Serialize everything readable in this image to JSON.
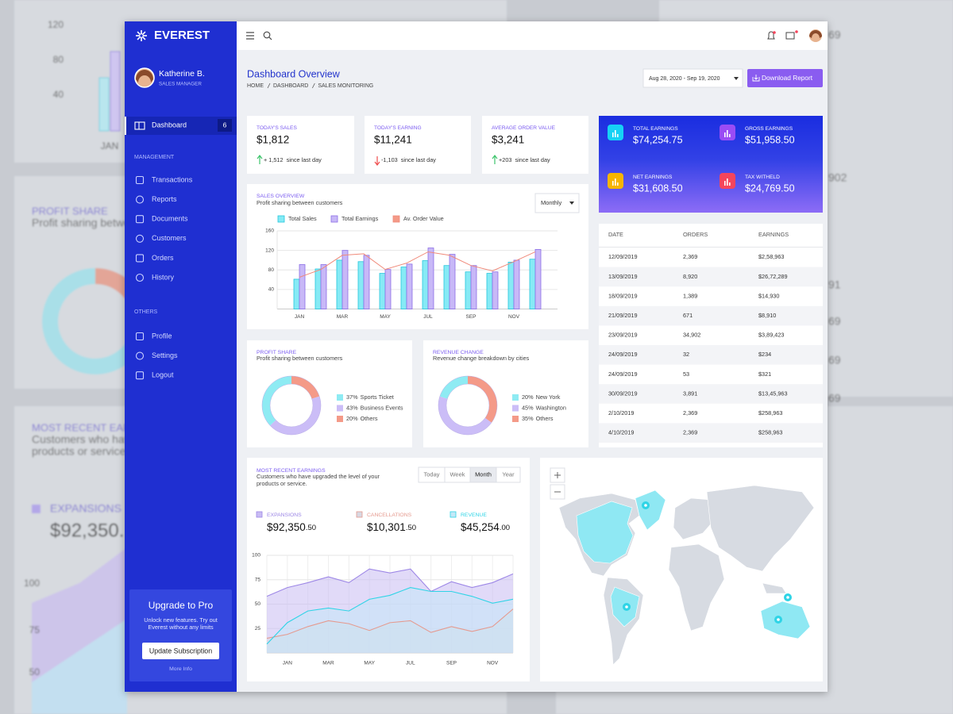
{
  "backdrop": {
    "left_texts": [
      "120",
      "80",
      "40",
      "JAN",
      "PROFIT SHARE",
      "Profit sharing betwe",
      "MOST RECENT EAR",
      "Customers who hav",
      "products or service.",
      "EXPANSIONS",
      "$92,350.",
      "100",
      "75",
      "50"
    ],
    "right_texts": [
      "69",
      "902",
      "91",
      "69",
      "69",
      "69"
    ]
  },
  "sidebar": {
    "brand": "EVEREST",
    "user": {
      "name": "Katherine B.",
      "role": "SALES MANAGER"
    },
    "active": {
      "label": "Dashboard",
      "badge": 6
    },
    "sections": [
      {
        "title": "MANAGEMENT",
        "items": [
          "Transactions",
          "Reports",
          "Documents",
          "Customers",
          "Orders",
          "History"
        ]
      },
      {
        "title": "OTHERS",
        "items": [
          "Profile",
          "Settings",
          "Logout"
        ]
      }
    ],
    "upgrade": {
      "title": "Upgrade to Pro",
      "text": "Unlock new features. Try out Everest without any limits",
      "button": "Update Subscription",
      "link": "More Info"
    }
  },
  "header": {
    "title": "Dashboard Overview",
    "breadcrumb": [
      "HOME",
      "DASHBOARD",
      "SALES MONITORING"
    ],
    "date_range": "Aug 28, 2020 - Sep 19, 2020",
    "button": "Download Report"
  },
  "kpis": [
    {
      "label": "TODAY'S SALES",
      "value": "$1,812",
      "change": "+ 1,512",
      "note": "since last day",
      "trend": "up"
    },
    {
      "label": "TODAY'S EARNING",
      "value": "$11,241",
      "change": "-1,103",
      "note": "since last day",
      "trend": "down"
    },
    {
      "label": "AVERAGE ORDER VALUE",
      "value": "$3,241",
      "change": "+203",
      "note": "since last day",
      "trend": "up"
    }
  ],
  "summary": [
    {
      "label": "TOTAL EARNINGS",
      "value": "$74,254.75",
      "color": "#16d2f5"
    },
    {
      "label": "GROSS EARNINGS",
      "value": "$51,958.50",
      "color": "#9a4cf5"
    },
    {
      "label": "NET EARNINGS",
      "value": "$31,608.50",
      "color": "#f7b500"
    },
    {
      "label": "TAX WITHELD",
      "value": "$24,769.50",
      "color": "#f5455c"
    }
  ],
  "table": {
    "columns": [
      "DATE",
      "ORDERS",
      "EARNINGS"
    ],
    "rows": [
      [
        "12/09/2019",
        "2,369",
        "$2,58,963"
      ],
      [
        "13/09/2019",
        "8,920",
        "$26,72,289"
      ],
      [
        "18/09/2019",
        "1,389",
        "$14,930"
      ],
      [
        "21/09/2019",
        "671",
        "$8,910"
      ],
      [
        "23/09/2019",
        "34,902",
        "$3,89,423"
      ],
      [
        "24/09/2019",
        "32",
        "$234"
      ],
      [
        "24/09/2019",
        "53",
        "$321"
      ],
      [
        "30/09/2019",
        "3,891",
        "$13,45,963"
      ],
      [
        "2/10/2019",
        "2,369",
        "$258,963"
      ],
      [
        "4/10/2019",
        "2,369",
        "$258,963"
      ]
    ]
  },
  "chart_data": [
    {
      "type": "bar",
      "title": "SALES OVERVIEW",
      "subtitle": "Profit sharing between customers",
      "control": "Monthly",
      "categories": [
        "JAN",
        null,
        "MAR",
        null,
        "MAY",
        null,
        "JUL",
        null,
        "SEP",
        null,
        "NOV",
        null
      ],
      "series": [
        {
          "name": "Total Sales",
          "kind": "bar",
          "color": "#25c6dc",
          "fill": "#86eaf5",
          "values": [
            61,
            82,
            100,
            97,
            73,
            86,
            99,
            89,
            76,
            73,
            96,
            102
          ]
        },
        {
          "name": "Total Earnings",
          "kind": "bar",
          "color": "#8c6fe6",
          "fill": "#c8b8f7",
          "values": [
            91,
            91,
            120,
            110,
            81,
            92,
            125,
            112,
            89,
            76,
            100,
            122
          ]
        },
        {
          "name": "Av. Order Value",
          "kind": "line",
          "color": "#f08a7a",
          "fill": "#f49a88",
          "values": [
            65,
            81,
            110,
            113,
            81,
            94,
            117,
            110,
            89,
            78,
            97,
            117
          ]
        }
      ],
      "ylim": [
        0,
        160
      ],
      "yticks": [
        40,
        80,
        120,
        160
      ],
      "grid": true
    },
    {
      "type": "pie",
      "title": "PROFIT SHARE",
      "subtitle": "Profit sharing between customers",
      "categories": [
        "Sports Ticket",
        "Business Events",
        "Others"
      ],
      "values": [
        37,
        43,
        20
      ],
      "value_labels": [
        "37%",
        "43%",
        "20%"
      ],
      "colors": [
        "#8eebf3",
        "#cbbdf7",
        "#f49a88"
      ]
    },
    {
      "type": "pie",
      "title": "REVENUE CHANGE",
      "subtitle": "Revenue change breakdown by cities",
      "categories": [
        "New York",
        "Washington",
        "Others"
      ],
      "values": [
        20,
        45,
        35
      ],
      "value_labels": [
        "20%",
        "45%",
        "35%"
      ],
      "colors": [
        "#8eebf3",
        "#cbbdf7",
        "#f49a88"
      ]
    },
    {
      "type": "area",
      "title": "MOST RECENT EARNINGS",
      "subtitle": "Customers who have upgraded the level of your products or service.",
      "tabs": [
        "Today",
        "Week",
        "Month",
        "Year"
      ],
      "active_tab": 2,
      "categories": [
        null,
        "JAN",
        null,
        "MAR",
        null,
        "MAY",
        null,
        "JUL",
        null,
        "SEP",
        null,
        "NOV",
        null
      ],
      "series": [
        {
          "name": "EXPANSIONS",
          "color": "#9d87e6",
          "fill": "#c9bcf3",
          "total": "$92,350",
          "cents": ".50",
          "values": [
            58,
            67,
            72,
            78,
            72,
            86,
            82,
            86,
            63,
            73,
            67,
            72,
            81
          ]
        },
        {
          "name": "CANCELLATIONS",
          "color": "#e59a8f",
          "fill": "#d8d8e2",
          "total": "$10,301",
          "cents": ".50",
          "values": [
            15,
            19,
            27,
            33,
            30,
            23,
            31,
            33,
            21,
            27,
            22,
            27,
            45
          ]
        },
        {
          "name": "REVENUE",
          "color": "#2fd4e6",
          "fill": "#c4e8f7",
          "total": "$45,254",
          "cents": ".00",
          "values": [
            9,
            31,
            43,
            46,
            43,
            55,
            59,
            67,
            63,
            63,
            58,
            51,
            55
          ]
        }
      ],
      "ylim": [
        0,
        100
      ],
      "yticks": [
        25,
        50,
        75,
        100
      ],
      "grid": true
    }
  ]
}
